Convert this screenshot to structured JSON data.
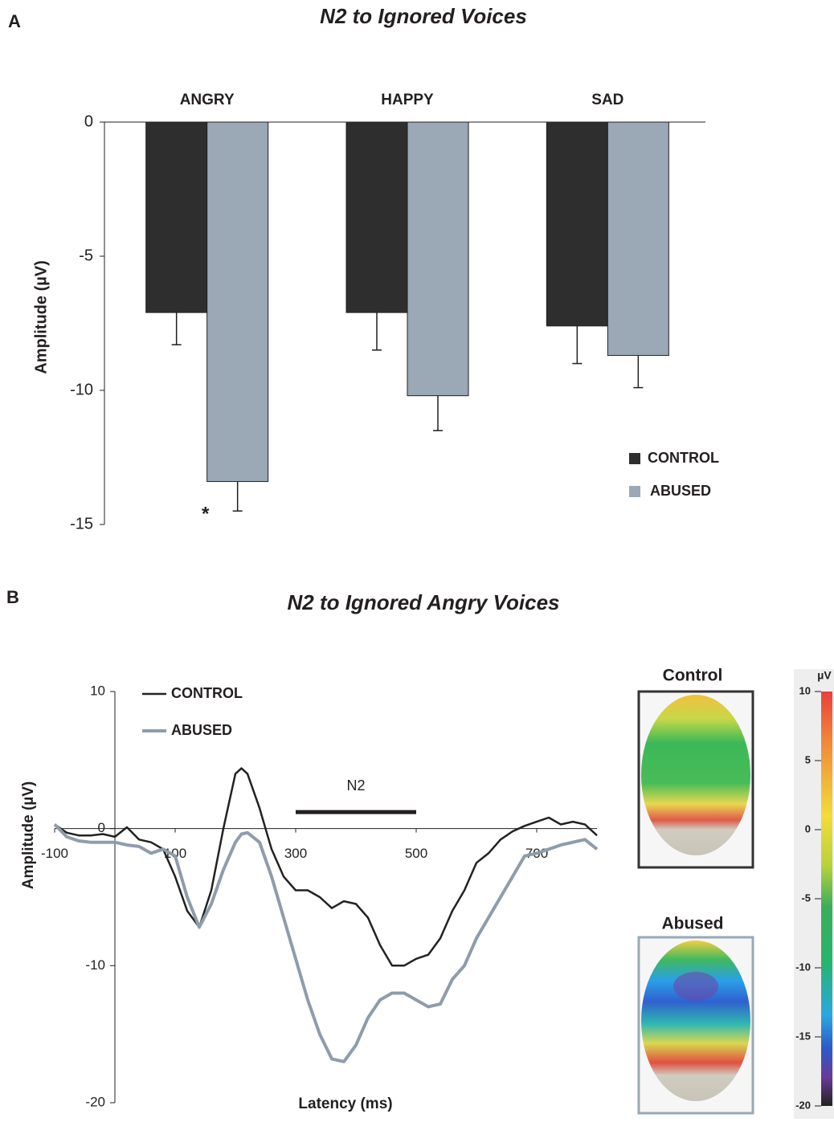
{
  "chart_data": [
    {
      "type": "bar",
      "panel_label": "A",
      "title": "N2 to Ignored Voices",
      "ylabel": "Amplitude (µV)",
      "categories": [
        "ANGRY",
        "HAPPY",
        "SAD"
      ],
      "series": [
        {
          "name": "CONTROL",
          "color": "#2e2e2e",
          "values": [
            -7.1,
            -7.1,
            -7.6
          ],
          "errors": [
            1.2,
            1.4,
            1.4
          ]
        },
        {
          "name": "ABUSED",
          "color": "#9ba8b5",
          "values": [
            -13.4,
            -10.2,
            -8.7
          ],
          "errors": [
            1.1,
            1.3,
            1.2
          ]
        }
      ],
      "annotations": [
        {
          "text": "*",
          "category": 0,
          "series": 1
        }
      ],
      "ylim": [
        -15,
        0
      ],
      "yticks": [
        0,
        -5,
        -10,
        -15
      ]
    },
    {
      "type": "line",
      "panel_label": "B",
      "title": "N2 to Ignored Angry Voices",
      "xlabel": "Latency (ms)",
      "ylabel": "Amplitude (µV)",
      "x": [
        -100,
        -80,
        -60,
        -40,
        -20,
        0,
        20,
        40,
        60,
        80,
        100,
        120,
        140,
        160,
        180,
        200,
        210,
        220,
        240,
        260,
        280,
        300,
        320,
        340,
        360,
        380,
        400,
        420,
        440,
        460,
        480,
        500,
        520,
        540,
        560,
        580,
        600,
        620,
        640,
        660,
        680,
        700,
        720,
        740,
        760,
        780,
        800
      ],
      "series": [
        {
          "name": "CONTROL",
          "color": "#222222",
          "values": [
            0.3,
            -0.3,
            -0.5,
            -0.5,
            -0.4,
            -0.6,
            0.1,
            -0.8,
            -1.0,
            -1.5,
            -3.5,
            -6.0,
            -7.2,
            -4.5,
            0,
            4.0,
            4.4,
            4.0,
            1.5,
            -1.5,
            -3.5,
            -4.5,
            -4.5,
            -5.0,
            -5.8,
            -5.3,
            -5.5,
            -6.5,
            -8.5,
            -10.0,
            -10.0,
            -9.5,
            -9.2,
            -8.0,
            -6.0,
            -4.5,
            -2.5,
            -1.8,
            -0.8,
            -0.2,
            0.2,
            0.5,
            0.8,
            0.3,
            0.5,
            0.3,
            -0.5
          ]
        },
        {
          "name": "ABUSED",
          "color": "#8e9cab",
          "values": [
            0.3,
            -0.6,
            -0.9,
            -1.0,
            -1.0,
            -1.0,
            -1.2,
            -1.3,
            -1.8,
            -1.5,
            -2.0,
            -5.0,
            -7.2,
            -5.5,
            -3.0,
            -1.0,
            -0.4,
            -0.3,
            -1.0,
            -3.5,
            -6.5,
            -9.5,
            -12.5,
            -15.0,
            -16.8,
            -17.0,
            -15.8,
            -13.8,
            -12.5,
            -12.0,
            -12.0,
            -12.5,
            -13.0,
            -12.8,
            -11.0,
            -10.0,
            -8.0,
            -6.5,
            -5.0,
            -3.5,
            -2.0,
            -1.8,
            -1.5,
            -1.2,
            -1.0,
            -0.8,
            -1.5
          ]
        }
      ],
      "window": {
        "label": "N2",
        "x": [
          300,
          500
        ],
        "y": 1.2
      },
      "xlim": [
        -100,
        800
      ],
      "xticks": [
        -100,
        100,
        300,
        500,
        700
      ],
      "ylim": [
        -20,
        10
      ],
      "yticks": [
        10,
        0,
        -10,
        -20
      ]
    },
    {
      "type": "colorbar",
      "title": "µV",
      "maps": [
        "Control",
        "Abused"
      ],
      "ylim": [
        -20,
        10
      ],
      "yticks": [
        10,
        5,
        0,
        -5,
        -10,
        -15,
        -20
      ]
    }
  ]
}
